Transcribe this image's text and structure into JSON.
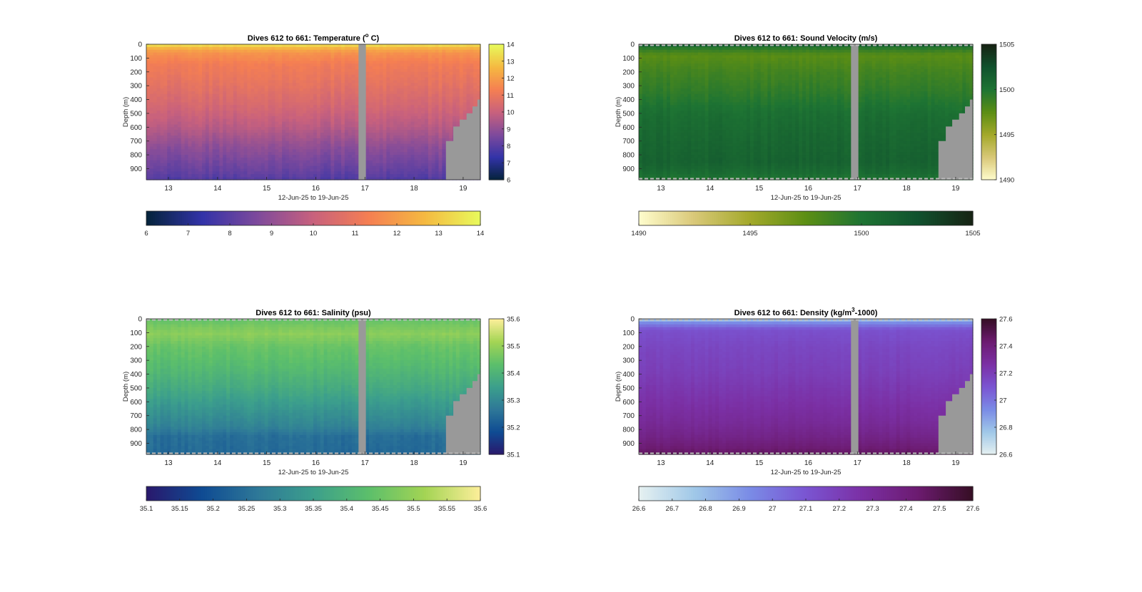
{
  "chart_data": [
    {
      "type": "heatmap",
      "variable": "temperature",
      "title": "Dives 612 to 661: Temperature (° C)",
      "title_parts": [
        "Dives 612 to 661: Temperature (",
        "o",
        " C)"
      ],
      "xlabel": "12-Jun-25 to 19-Jun-25",
      "ylabel": "Depth (m)",
      "x_ticks": [
        "13",
        "14",
        "15",
        "16",
        "17",
        "18",
        "19"
      ],
      "y_ticks": [
        "0",
        "100",
        "200",
        "300",
        "400",
        "500",
        "600",
        "700",
        "800",
        "900"
      ],
      "xlim": [
        12.55,
        19.35
      ],
      "ylim": [
        0,
        980
      ],
      "colormap": "thermal",
      "colormap_stops": [
        "#04233a",
        "#3233a8",
        "#7e4a9c",
        "#c8617d",
        "#f57f52",
        "#f5b941",
        "#e8fa5b"
      ],
      "clim": [
        6,
        14
      ],
      "colorbar_ticks": [
        "6",
        "7",
        "8",
        "9",
        "10",
        "11",
        "12",
        "13",
        "14"
      ],
      "horizontal_colorbar_ticks": [
        "6",
        "7",
        "8",
        "9",
        "10",
        "11",
        "12",
        "13",
        "14"
      ],
      "profile": [
        [
          0,
          13.9
        ],
        [
          15,
          12.9
        ],
        [
          60,
          11.8
        ],
        [
          150,
          11.2
        ],
        [
          300,
          10.8
        ],
        [
          450,
          10.3
        ],
        [
          600,
          9.7
        ],
        [
          750,
          8.9
        ],
        [
          900,
          8.3
        ],
        [
          980,
          7.9
        ]
      ],
      "gap_x": [
        16.87,
        17.02
      ],
      "missing_color": "#999999",
      "dashed_bounds": false,
      "variability": 0.28
    },
    {
      "type": "heatmap",
      "variable": "sound_velocity",
      "title": "Dives 612 to 661: Sound Velocity (m/s)",
      "title_parts": [
        "Dives 612 to 661: Sound Velocity (m/s)",
        "",
        ""
      ],
      "xlabel": "12-Jun-25 to 19-Jun-25",
      "ylabel": "Depth (m)",
      "x_ticks": [
        "13",
        "14",
        "15",
        "16",
        "17",
        "18",
        "19"
      ],
      "y_ticks": [
        "0",
        "100",
        "200",
        "300",
        "400",
        "500",
        "600",
        "700",
        "800",
        "900"
      ],
      "xlim": [
        12.55,
        19.35
      ],
      "ylim": [
        0,
        980
      ],
      "colormap": "speed",
      "colormap_stops": [
        "#fffdcd",
        "#d9c878",
        "#a3a92b",
        "#5c8e14",
        "#1e7433",
        "#11522e",
        "#172313"
      ],
      "clim": [
        1490,
        1505
      ],
      "colorbar_ticks": [
        "1490",
        "1495",
        "1500",
        "1505"
      ],
      "horizontal_colorbar_ticks": [
        "1490",
        "1495",
        "1500",
        "1505"
      ],
      "profile": [
        [
          0,
          1502.3
        ],
        [
          25,
          1499.6
        ],
        [
          80,
          1497.6
        ],
        [
          200,
          1498.5
        ],
        [
          350,
          1499.3
        ],
        [
          500,
          1500.4
        ],
        [
          700,
          1501.0
        ],
        [
          850,
          1501.3
        ],
        [
          930,
          1500.7
        ],
        [
          980,
          1499.8
        ]
      ],
      "gap_x": [
        16.87,
        17.02
      ],
      "missing_color": "#999999",
      "dashed_bounds": true,
      "variability": 0.45
    },
    {
      "type": "heatmap",
      "variable": "salinity",
      "title": "Dives 612 to 661: Salinity (psu)",
      "title_parts": [
        "Dives 612 to 661: Salinity (psu)",
        "",
        ""
      ],
      "xlabel": "12-Jun-25 to 19-Jun-25",
      "ylabel": "Depth (m)",
      "x_ticks": [
        "13",
        "14",
        "15",
        "16",
        "17",
        "18",
        "19"
      ],
      "y_ticks": [
        "0",
        "100",
        "200",
        "300",
        "400",
        "500",
        "600",
        "700",
        "800",
        "900"
      ],
      "xlim": [
        12.55,
        19.35
      ],
      "ylim": [
        0,
        980
      ],
      "colormap": "haline",
      "colormap_stops": [
        "#2a186c",
        "#0f4b93",
        "#2e7898",
        "#3c9f8c",
        "#5cbf6b",
        "#a3d454",
        "#fdef9a"
      ],
      "clim": [
        35.1,
        35.6
      ],
      "colorbar_ticks": [
        "35.1",
        "35.2",
        "35.3",
        "35.4",
        "35.5",
        "35.6"
      ],
      "horizontal_colorbar_ticks": [
        "35.1",
        "35.15",
        "35.2",
        "35.25",
        "35.3",
        "35.35",
        "35.4",
        "35.45",
        "35.5",
        "35.55",
        "35.6"
      ],
      "profile": [
        [
          0,
          35.44
        ],
        [
          60,
          35.47
        ],
        [
          110,
          35.49
        ],
        [
          200,
          35.45
        ],
        [
          350,
          35.42
        ],
        [
          500,
          35.38
        ],
        [
          650,
          35.33
        ],
        [
          780,
          35.29
        ],
        [
          850,
          35.25
        ],
        [
          980,
          35.24
        ]
      ],
      "gap_x": [
        16.87,
        17.02
      ],
      "missing_color": "#999999",
      "dashed_bounds": true,
      "variability": 0.018
    },
    {
      "type": "heatmap",
      "variable": "density",
      "title": "Dives 612 to 661: Density (kg/m³-1000)",
      "title_parts": [
        "Dives 612 to 661: Density (kg/m",
        "3",
        "-1000)"
      ],
      "xlabel": "12-Jun-25 to 19-Jun-25",
      "ylabel": "Depth (m)",
      "x_ticks": [
        "13",
        "14",
        "15",
        "16",
        "17",
        "18",
        "19"
      ],
      "y_ticks": [
        "0",
        "100",
        "200",
        "300",
        "400",
        "500",
        "600",
        "700",
        "800",
        "900"
      ],
      "xlim": [
        12.55,
        19.35
      ],
      "ylim": [
        0,
        980
      ],
      "colormap": "dense",
      "colormap_stops": [
        "#e6f1f1",
        "#a0c8e8",
        "#7a8be6",
        "#7a55d2",
        "#7b30a5",
        "#6c1b70",
        "#360e24"
      ],
      "clim": [
        26.6,
        27.6
      ],
      "colorbar_ticks": [
        "26.6",
        "26.8",
        "27",
        "27.2",
        "27.4",
        "27.6"
      ],
      "horizontal_colorbar_ticks": [
        "26.6",
        "26.7",
        "26.8",
        "26.9",
        "27",
        "27.1",
        "27.2",
        "27.3",
        "27.4",
        "27.5",
        "27.6"
      ],
      "profile": [
        [
          0,
          26.72
        ],
        [
          20,
          26.9
        ],
        [
          80,
          27.12
        ],
        [
          200,
          27.16
        ],
        [
          400,
          27.2
        ],
        [
          600,
          27.26
        ],
        [
          750,
          27.31
        ],
        [
          850,
          27.36
        ],
        [
          930,
          27.42
        ],
        [
          980,
          27.47
        ]
      ],
      "gap_x": [
        16.87,
        17.02
      ],
      "missing_color": "#999999",
      "dashed_bounds": true,
      "variability": 0.02
    }
  ],
  "bathymetry_mask": [
    [
      18.65,
      700
    ],
    [
      18.8,
      595
    ],
    [
      18.93,
      545
    ],
    [
      19.07,
      500
    ],
    [
      19.19,
      450
    ],
    [
      19.29,
      400
    ]
  ]
}
